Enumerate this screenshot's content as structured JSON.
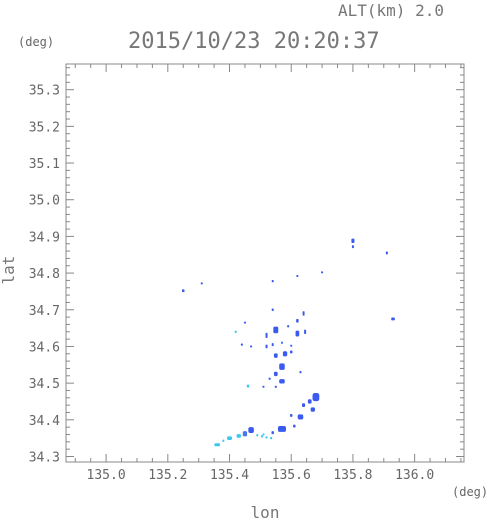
{
  "chart_data": {
    "type": "scatter",
    "title": "2015/10/23 20:20:37",
    "altitude_label": "ALT(km) 2.0",
    "xlabel": "lon",
    "ylabel": "lat",
    "x_unit": "(deg)",
    "y_unit": "(deg)",
    "xlim": [
      134.87,
      136.16
    ],
    "ylim": [
      34.285,
      35.37
    ],
    "xticks": [
      "135.0",
      "135.2",
      "135.4",
      "135.6",
      "135.8",
      "136.0"
    ],
    "yticks": [
      "34.3",
      "34.4",
      "34.5",
      "34.6",
      "34.7",
      "34.8",
      "34.9",
      "35.0",
      "35.1",
      "35.2",
      "35.3"
    ],
    "colors": {
      "strong": "#3b5bf0",
      "medium": "#4878f0",
      "weak": "#38c8f0",
      "axis": "#888888"
    },
    "points": [
      {
        "x": 135.25,
        "y": 34.752,
        "w": 0.008,
        "h": 0.008,
        "c": "strong"
      },
      {
        "x": 135.31,
        "y": 34.772,
        "w": 0.004,
        "h": 0.005,
        "c": "strong"
      },
      {
        "x": 135.54,
        "y": 34.778,
        "w": 0.004,
        "h": 0.006,
        "c": "strong"
      },
      {
        "x": 135.62,
        "y": 34.792,
        "w": 0.005,
        "h": 0.005,
        "c": "strong"
      },
      {
        "x": 135.7,
        "y": 34.802,
        "w": 0.003,
        "h": 0.004,
        "c": "strong"
      },
      {
        "x": 135.8,
        "y": 34.888,
        "w": 0.01,
        "h": 0.012,
        "c": "strong"
      },
      {
        "x": 135.8,
        "y": 34.872,
        "w": 0.006,
        "h": 0.008,
        "c": "strong"
      },
      {
        "x": 135.91,
        "y": 34.855,
        "w": 0.005,
        "h": 0.008,
        "c": "strong"
      },
      {
        "x": 135.93,
        "y": 34.675,
        "w": 0.012,
        "h": 0.008,
        "c": "strong"
      },
      {
        "x": 135.54,
        "y": 34.7,
        "w": 0.005,
        "h": 0.007,
        "c": "strong"
      },
      {
        "x": 135.45,
        "y": 34.665,
        "w": 0.006,
        "h": 0.005,
        "c": "strong"
      },
      {
        "x": 135.42,
        "y": 34.64,
        "w": 0.005,
        "h": 0.006,
        "c": "weak"
      },
      {
        "x": 135.44,
        "y": 34.605,
        "w": 0.004,
        "h": 0.006,
        "c": "strong"
      },
      {
        "x": 135.47,
        "y": 34.6,
        "w": 0.006,
        "h": 0.005,
        "c": "strong"
      },
      {
        "x": 135.52,
        "y": 34.63,
        "w": 0.006,
        "h": 0.014,
        "c": "strong"
      },
      {
        "x": 135.55,
        "y": 34.645,
        "w": 0.016,
        "h": 0.018,
        "c": "strong"
      },
      {
        "x": 135.52,
        "y": 34.6,
        "w": 0.005,
        "h": 0.01,
        "c": "strong"
      },
      {
        "x": 135.54,
        "y": 34.605,
        "w": 0.005,
        "h": 0.008,
        "c": "strong"
      },
      {
        "x": 135.57,
        "y": 34.61,
        "w": 0.004,
        "h": 0.006,
        "c": "medium"
      },
      {
        "x": 135.6,
        "y": 34.602,
        "w": 0.005,
        "h": 0.005,
        "c": "strong"
      },
      {
        "x": 135.62,
        "y": 34.67,
        "w": 0.008,
        "h": 0.01,
        "c": "strong"
      },
      {
        "x": 135.64,
        "y": 34.69,
        "w": 0.006,
        "h": 0.012,
        "c": "strong"
      },
      {
        "x": 135.62,
        "y": 34.635,
        "w": 0.012,
        "h": 0.016,
        "c": "strong"
      },
      {
        "x": 135.645,
        "y": 34.64,
        "w": 0.006,
        "h": 0.012,
        "c": "strong"
      },
      {
        "x": 135.59,
        "y": 34.655,
        "w": 0.005,
        "h": 0.006,
        "c": "strong"
      },
      {
        "x": 135.58,
        "y": 34.58,
        "w": 0.014,
        "h": 0.014,
        "c": "strong"
      },
      {
        "x": 135.55,
        "y": 34.575,
        "w": 0.012,
        "h": 0.012,
        "c": "strong"
      },
      {
        "x": 135.6,
        "y": 34.585,
        "w": 0.008,
        "h": 0.008,
        "c": "strong"
      },
      {
        "x": 135.57,
        "y": 34.545,
        "w": 0.018,
        "h": 0.018,
        "c": "strong"
      },
      {
        "x": 135.55,
        "y": 34.525,
        "w": 0.012,
        "h": 0.012,
        "c": "strong"
      },
      {
        "x": 135.57,
        "y": 34.505,
        "w": 0.018,
        "h": 0.012,
        "c": "strong"
      },
      {
        "x": 135.53,
        "y": 34.512,
        "w": 0.006,
        "h": 0.006,
        "c": "strong"
      },
      {
        "x": 135.55,
        "y": 34.49,
        "w": 0.006,
        "h": 0.006,
        "c": "strong"
      },
      {
        "x": 135.51,
        "y": 34.49,
        "w": 0.006,
        "h": 0.005,
        "c": "strong"
      },
      {
        "x": 135.46,
        "y": 34.492,
        "w": 0.008,
        "h": 0.008,
        "c": "weak"
      },
      {
        "x": 135.63,
        "y": 34.53,
        "w": 0.005,
        "h": 0.006,
        "c": "strong"
      },
      {
        "x": 135.68,
        "y": 34.462,
        "w": 0.022,
        "h": 0.022,
        "c": "strong"
      },
      {
        "x": 135.66,
        "y": 34.45,
        "w": 0.012,
        "h": 0.012,
        "c": "strong"
      },
      {
        "x": 135.64,
        "y": 34.44,
        "w": 0.01,
        "h": 0.01,
        "c": "strong"
      },
      {
        "x": 135.67,
        "y": 34.428,
        "w": 0.014,
        "h": 0.012,
        "c": "strong"
      },
      {
        "x": 135.63,
        "y": 34.408,
        "w": 0.018,
        "h": 0.014,
        "c": "strong"
      },
      {
        "x": 135.6,
        "y": 34.412,
        "w": 0.008,
        "h": 0.008,
        "c": "strong"
      },
      {
        "x": 135.57,
        "y": 34.375,
        "w": 0.026,
        "h": 0.016,
        "c": "strong"
      },
      {
        "x": 135.61,
        "y": 34.383,
        "w": 0.008,
        "h": 0.008,
        "c": "strong"
      },
      {
        "x": 135.54,
        "y": 34.365,
        "w": 0.008,
        "h": 0.008,
        "c": "strong"
      },
      {
        "x": 135.51,
        "y": 34.36,
        "w": 0.006,
        "h": 0.005,
        "c": "weak"
      },
      {
        "x": 135.47,
        "y": 34.372,
        "w": 0.018,
        "h": 0.016,
        "c": "strong"
      },
      {
        "x": 135.45,
        "y": 34.362,
        "w": 0.014,
        "h": 0.014,
        "c": "medium"
      },
      {
        "x": 135.43,
        "y": 34.356,
        "w": 0.014,
        "h": 0.01,
        "c": "weak"
      },
      {
        "x": 135.4,
        "y": 34.35,
        "w": 0.016,
        "h": 0.01,
        "c": "weak"
      },
      {
        "x": 135.38,
        "y": 34.343,
        "w": 0.006,
        "h": 0.006,
        "c": "weak"
      },
      {
        "x": 135.36,
        "y": 34.332,
        "w": 0.018,
        "h": 0.008,
        "c": "weak"
      },
      {
        "x": 135.49,
        "y": 34.358,
        "w": 0.004,
        "h": 0.006,
        "c": "weak"
      },
      {
        "x": 135.505,
        "y": 34.355,
        "w": 0.004,
        "h": 0.006,
        "c": "weak"
      },
      {
        "x": 135.52,
        "y": 34.352,
        "w": 0.004,
        "h": 0.006,
        "c": "weak"
      },
      {
        "x": 135.535,
        "y": 34.35,
        "w": 0.004,
        "h": 0.006,
        "c": "weak"
      }
    ]
  }
}
